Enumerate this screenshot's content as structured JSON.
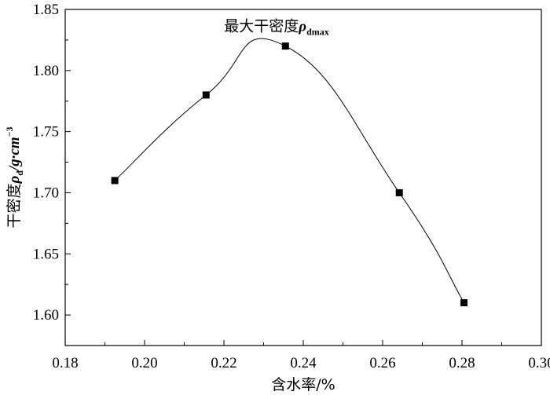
{
  "chart_data": {
    "type": "line",
    "smooth": true,
    "marker": "square",
    "color": "#000000",
    "x": [
      0.1925,
      0.2155,
      0.2355,
      0.2642,
      0.2805
    ],
    "y": [
      1.71,
      1.78,
      1.82,
      1.7,
      1.61
    ],
    "xlim": [
      0.18,
      0.3
    ],
    "ylim": [
      1.575,
      1.85
    ],
    "xticks": [
      0.18,
      0.2,
      0.22,
      0.24,
      0.26,
      0.28,
      0.3
    ],
    "yticks": [
      1.6,
      1.65,
      1.7,
      1.75,
      1.8,
      1.85
    ],
    "xtick_labels": [
      "0.18",
      "0.20",
      "0.22",
      "0.24",
      "0.26",
      "0.28",
      "0.30"
    ],
    "ytick_labels": [
      "1.60",
      "1.65",
      "1.70",
      "1.75",
      "1.80",
      "1.85"
    ],
    "xlabel": "含水率/%",
    "ylabel": {
      "main": "干密度",
      "symbol": "ρ",
      "subscript": "d",
      "unit": "/g·cm",
      "superscript": "−3"
    },
    "annotation": {
      "text": "最大干密度",
      "symbol": "ρ",
      "subscript": "dmax",
      "x": 0.2355,
      "y": 1.82
    },
    "grid": false
  }
}
